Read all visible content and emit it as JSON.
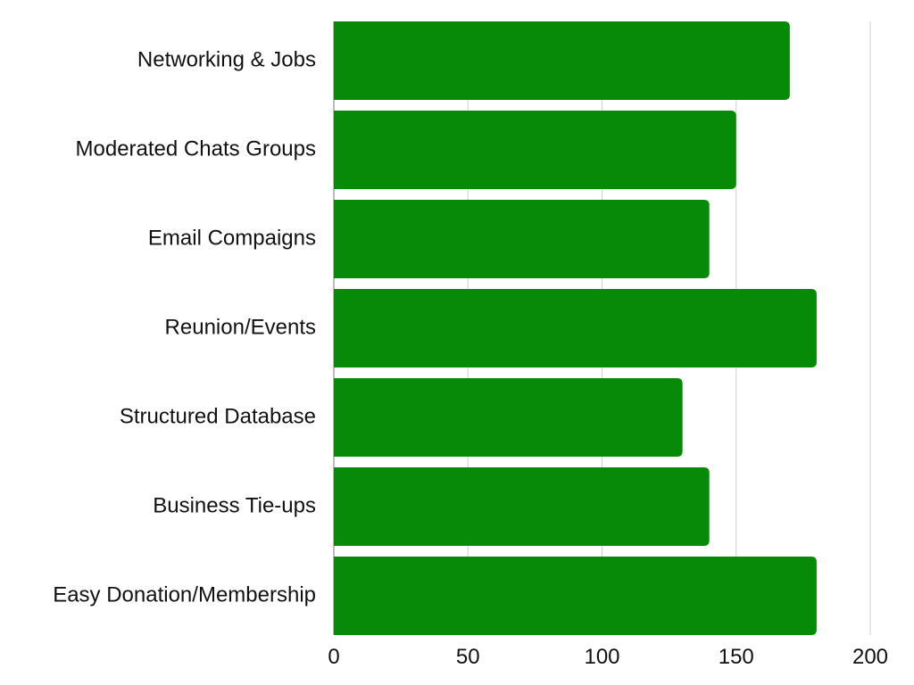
{
  "chart_data": {
    "type": "bar",
    "orientation": "horizontal",
    "categories": [
      "Networking & Jobs",
      "Moderated Chats Groups",
      "Email Compaigns",
      "Reunion/Events",
      "Structured Database",
      "Business Tie-ups",
      "Easy Donation/Membership"
    ],
    "values": [
      170,
      150,
      140,
      180,
      130,
      140,
      180
    ],
    "xlim": [
      0,
      200
    ],
    "x_ticks": [
      0,
      50,
      100,
      150,
      200
    ],
    "x_tick_labels": [
      "0",
      "50",
      "100",
      "150",
      "200"
    ],
    "grid": "vertical",
    "bar_color": "#078a07",
    "title": "",
    "xlabel": "",
    "ylabel": ""
  }
}
